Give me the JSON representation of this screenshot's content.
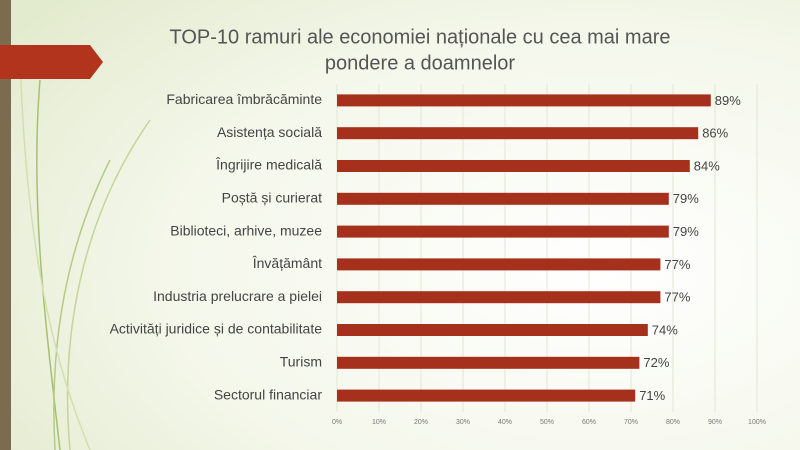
{
  "chart_data": {
    "type": "bar",
    "orientation": "horizontal",
    "title": [
      "TOP-10 ramuri ale economiei naționale cu cea mai mare",
      "pondere a doamnelor"
    ],
    "categories": [
      "Fabricarea îmbrăcăminte",
      "Asistența socială",
      "Îngrijire medicală",
      "Poștă și curierat",
      "Biblioteci, arhive, muzee",
      "Învățământ",
      "Industria prelucrare a pielei",
      "Activități juridice și de contabilitate",
      "Turism",
      "Sectorul financiar"
    ],
    "values": [
      89,
      86,
      84,
      79,
      79,
      77,
      77,
      74,
      72,
      71
    ],
    "value_labels": [
      "89%",
      "86%",
      "84%",
      "79%",
      "79%",
      "77%",
      "77%",
      "74%",
      "72%",
      "71%"
    ],
    "color": "#a5301c",
    "xlim": [
      0,
      100
    ],
    "xticks": [
      {
        "value": 0,
        "label": "0%"
      },
      {
        "value": 10,
        "label": "10%"
      },
      {
        "value": 20,
        "label": "20%"
      },
      {
        "value": 30,
        "label": "30%"
      },
      {
        "value": 40,
        "label": "40%"
      },
      {
        "value": 50,
        "label": "50%"
      },
      {
        "value": 60,
        "label": "60%"
      },
      {
        "value": 70,
        "label": "70%"
      },
      {
        "value": 80,
        "label": "80%"
      },
      {
        "value": 90,
        "label": "90%"
      },
      {
        "value": 100,
        "label": "100%"
      }
    ],
    "grid": true
  }
}
